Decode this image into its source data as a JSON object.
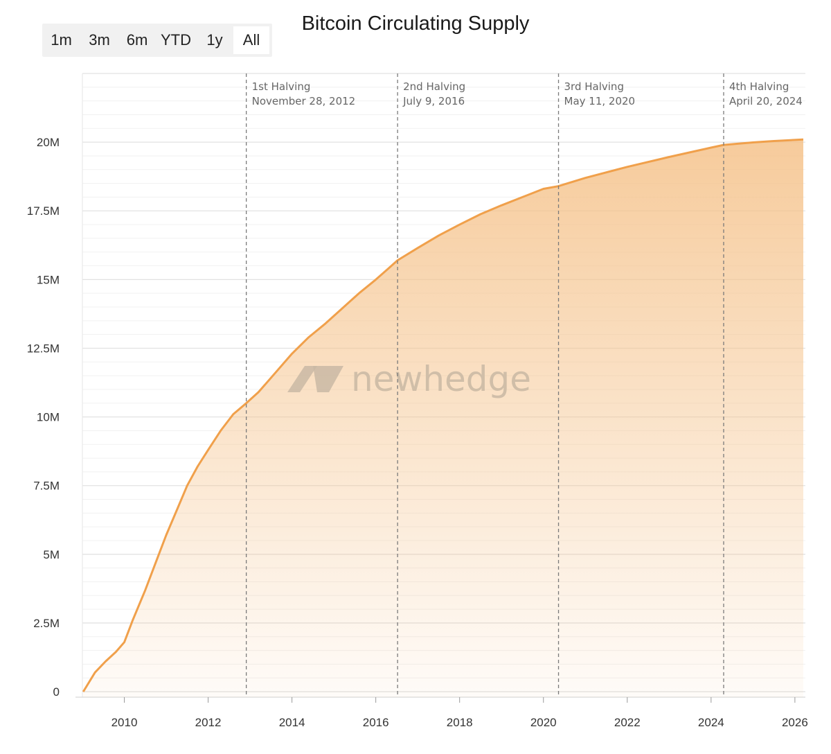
{
  "range_selector": {
    "options": [
      "1m",
      "3m",
      "6m",
      "YTD",
      "1y",
      "All"
    ],
    "selected": "All"
  },
  "watermark": "newhedge",
  "colors": {
    "line": "#f0a04b",
    "fill": "#f5c28a",
    "grid": "#e6e6e6",
    "halving_line": "#7a7a7a"
  },
  "chart_data": {
    "type": "area",
    "title": "Bitcoin Circulating Supply",
    "xlabel": "",
    "ylabel": "",
    "xlim": [
      2009.0,
      2026.25
    ],
    "ylim": [
      -200000,
      22500000
    ],
    "x_ticks": [
      2010,
      2012,
      2014,
      2016,
      2018,
      2020,
      2022,
      2024,
      2026
    ],
    "y_ticks": [
      {
        "value": 0,
        "label": "0"
      },
      {
        "value": 2500000,
        "label": "2.5M"
      },
      {
        "value": 5000000,
        "label": "5M"
      },
      {
        "value": 7500000,
        "label": "7.5M"
      },
      {
        "value": 10000000,
        "label": "10M"
      },
      {
        "value": 12500000,
        "label": "12.5M"
      },
      {
        "value": 15000000,
        "label": "15M"
      },
      {
        "value": 17500000,
        "label": "17.5M"
      },
      {
        "value": 20000000,
        "label": "20M"
      }
    ],
    "grid": true,
    "legend": "none",
    "series": [
      {
        "x": [
          2009.02,
          2009.3,
          2009.55,
          2009.8,
          2010.0,
          2010.2,
          2010.5,
          2010.75,
          2011.0,
          2011.25,
          2011.5,
          2011.75,
          2012.0,
          2012.3,
          2012.6,
          2012.91,
          2013.2,
          2013.6,
          2014.0,
          2014.4,
          2014.8,
          2015.2,
          2015.6,
          2016.0,
          2016.3,
          2016.52,
          2017.0,
          2017.5,
          2018.0,
          2018.5,
          2019.0,
          2019.5,
          2020.0,
          2020.36,
          2021.0,
          2022.0,
          2023.0,
          2024.0,
          2024.3,
          2025.0,
          2025.5,
          2026.2
        ],
        "y": [
          0,
          700000,
          1100000,
          1450000,
          1800000,
          2600000,
          3700000,
          4700000,
          5700000,
          6600000,
          7500000,
          8200000,
          8800000,
          9500000,
          10100000,
          10500000,
          10900000,
          11600000,
          12300000,
          12900000,
          13400000,
          13950000,
          14500000,
          15000000,
          15400000,
          15700000,
          16150000,
          16600000,
          17000000,
          17380000,
          17700000,
          18000000,
          18300000,
          18400000,
          18700000,
          19100000,
          19460000,
          19800000,
          19900000,
          19990000,
          20040000,
          20100000
        ]
      }
    ],
    "annotations": [
      {
        "x": 2012.91,
        "label": "1st Halving",
        "date": "November 28, 2012"
      },
      {
        "x": 2016.52,
        "label": "2nd Halving",
        "date": "July 9, 2016"
      },
      {
        "x": 2020.36,
        "label": "3rd Halving",
        "date": "May 11, 2020"
      },
      {
        "x": 2024.3,
        "label": "4th Halving",
        "date": "April 20, 2024"
      }
    ]
  }
}
